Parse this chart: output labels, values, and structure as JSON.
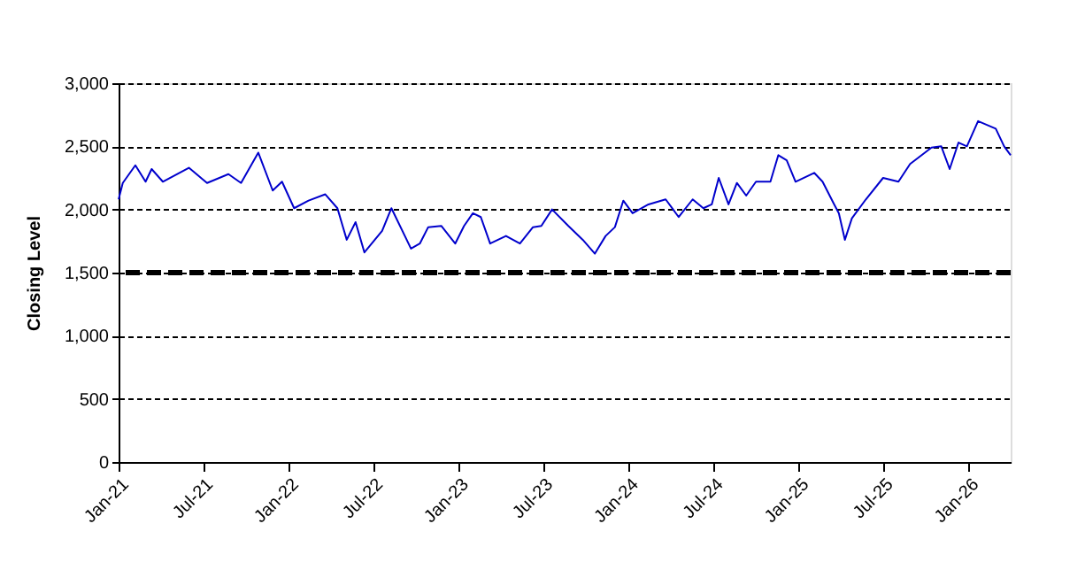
{
  "chart_data": {
    "type": "line",
    "ylabel": "Closing Level",
    "x": [
      "2021-01-01",
      "2021-01-10",
      "2021-02-06",
      "2021-02-28",
      "2021-03-13",
      "2021-04-06",
      "2021-06-01",
      "2021-07-10",
      "2021-08-25",
      "2021-09-21",
      "2021-10-28",
      "2021-11-28",
      "2021-12-18",
      "2022-01-13",
      "2022-02-13",
      "2022-03-21",
      "2022-04-16",
      "2022-05-06",
      "2022-05-25",
      "2022-06-13",
      "2022-07-21",
      "2022-08-10",
      "2022-09-21",
      "2022-10-10",
      "2022-10-28",
      "2022-11-25",
      "2022-12-25",
      "2023-01-13",
      "2023-02-01",
      "2023-02-18",
      "2023-03-10",
      "2023-04-13",
      "2023-05-13",
      "2023-06-10",
      "2023-06-28",
      "2023-07-21",
      "2023-08-25",
      "2023-09-25",
      "2023-10-21",
      "2023-11-13",
      "2023-12-03",
      "2023-12-21",
      "2024-01-10",
      "2024-02-13",
      "2024-03-21",
      "2024-04-18",
      "2024-05-18",
      "2024-06-10",
      "2024-06-28",
      "2024-07-13",
      "2024-08-03",
      "2024-08-21",
      "2024-09-10",
      "2024-10-01",
      "2024-11-01",
      "2024-11-18",
      "2024-12-06",
      "2024-12-25",
      "2025-02-03",
      "2025-02-21",
      "2025-03-18",
      "2025-03-28",
      "2025-04-10",
      "2025-04-25",
      "2025-05-25",
      "2025-07-01",
      "2025-08-03",
      "2025-08-28",
      "2025-10-13",
      "2025-11-03",
      "2025-11-21",
      "2025-12-10",
      "2025-12-28",
      "2026-01-21",
      "2026-02-28",
      "2026-03-18",
      "2026-04-01"
    ],
    "series": [
      {
        "color": "#0000cc",
        "values": [
          2080,
          2210,
          2350,
          2220,
          2320,
          2220,
          2330,
          2210,
          2280,
          2210,
          2450,
          2150,
          2220,
          2010,
          2070,
          2120,
          2010,
          1760,
          1900,
          1660,
          1830,
          2010,
          1690,
          1730,
          1860,
          1870,
          1730,
          1870,
          1970,
          1940,
          1730,
          1790,
          1730,
          1860,
          1870,
          2000,
          1870,
          1760,
          1650,
          1790,
          1860,
          2070,
          1970,
          2040,
          2080,
          1940,
          2080,
          2010,
          2040,
          2250,
          2040,
          2210,
          2110,
          2220,
          2220,
          2430,
          2390,
          2220,
          2290,
          2220,
          2040,
          1970,
          1760,
          1930,
          2080,
          2250,
          2220,
          2360,
          2490,
          2500,
          2320,
          2530,
          2500,
          2700,
          2640,
          2500,
          2430
        ]
      }
    ],
    "xlim": [
      "2021-01-01",
      "2026-04-01"
    ],
    "xticks": [
      {
        "value": "2021-01-01",
        "label": "Jan-21"
      },
      {
        "value": "2021-07-01",
        "label": "Jul-21"
      },
      {
        "value": "2022-01-01",
        "label": "Jan-22"
      },
      {
        "value": "2022-07-01",
        "label": "Jul-22"
      },
      {
        "value": "2023-01-01",
        "label": "Jan-23"
      },
      {
        "value": "2023-07-01",
        "label": "Jul-23"
      },
      {
        "value": "2024-01-01",
        "label": "Jan-24"
      },
      {
        "value": "2024-07-01",
        "label": "Jul-24"
      },
      {
        "value": "2025-01-01",
        "label": "Jan-25"
      },
      {
        "value": "2025-07-01",
        "label": "Jul-25"
      },
      {
        "value": "2026-01-01",
        "label": "Jan-26"
      }
    ],
    "ylim": [
      0,
      3000
    ],
    "yticks": [
      {
        "value": 0,
        "label": "0"
      },
      {
        "value": 500,
        "label": "500"
      },
      {
        "value": 1000,
        "label": "1,000"
      },
      {
        "value": 1500,
        "label": "1,500"
      },
      {
        "value": 2000,
        "label": "2,000"
      },
      {
        "value": 2500,
        "label": "2,500"
      },
      {
        "value": 3000,
        "label": "3,000"
      }
    ],
    "grid": "y",
    "legend": false,
    "marker": "none",
    "line_style": "solid",
    "ref_lines": [
      {
        "axis": "y",
        "value": 1500,
        "color": "#000000",
        "line_style": "dashed"
      }
    ]
  }
}
